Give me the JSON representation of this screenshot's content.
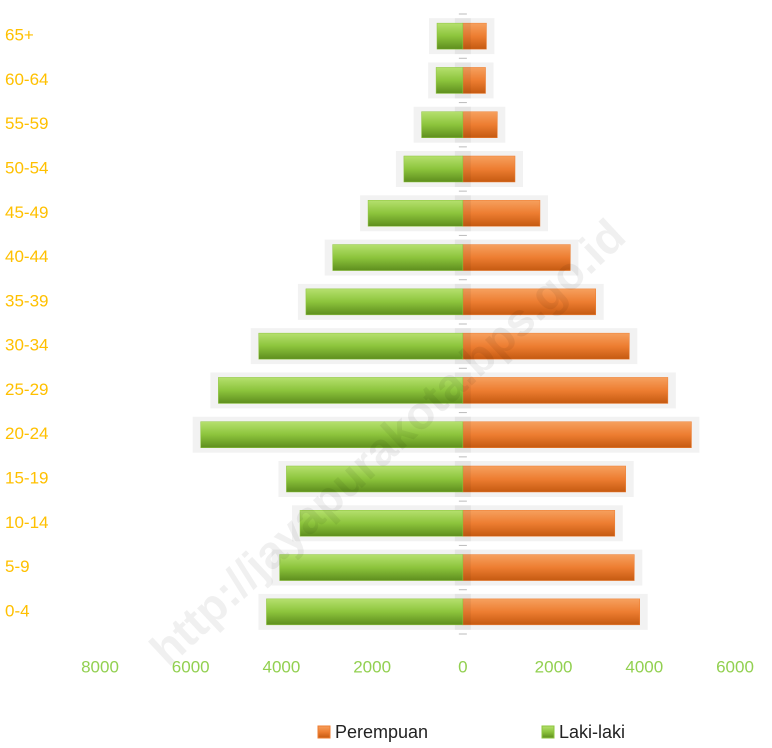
{
  "chart_data": {
    "type": "bar",
    "orientation": "horizontal",
    "stacked": true,
    "categories": [
      "0-4",
      "5-9",
      "10-14",
      "15-19",
      "20-24",
      "25-29",
      "30-34",
      "35-39",
      "40-44",
      "45-49",
      "50-54",
      "55-59",
      "60-64",
      "65+"
    ],
    "series": [
      {
        "name": "Perempuan",
        "color": "#ed7d31",
        "values": [
          3900,
          3780,
          3350,
          3590,
          5040,
          4520,
          3670,
          2930,
          2370,
          1700,
          1150,
          760,
          500,
          520
        ]
      },
      {
        "name": "Laki-laki",
        "color": "#8cc43c",
        "values": [
          -4330,
          -4040,
          -3590,
          -3890,
          -5780,
          -5390,
          -4500,
          -3460,
          -2870,
          -2090,
          -1300,
          -910,
          -590,
          -570
        ]
      }
    ],
    "xlim": [
      -8000,
      6000
    ],
    "xticks": [
      {
        "value": -8000,
        "label": "8000"
      },
      {
        "value": -6000,
        "label": "6000"
      },
      {
        "value": -4000,
        "label": "4000"
      },
      {
        "value": -2000,
        "label": "2000"
      },
      0,
      2000,
      4000,
      6000
    ],
    "grid": false,
    "legend": "bottom",
    "watermark": "http://jayapurakota.bps.go.id"
  }
}
